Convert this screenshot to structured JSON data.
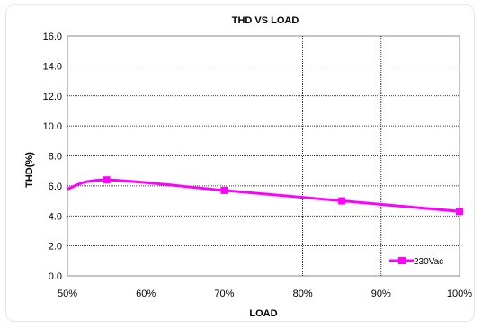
{
  "chart_data": {
    "type": "line",
    "title": "THD  VS  LOAD",
    "xlabel": "LOAD",
    "ylabel": "THD(%)",
    "x_categories": [
      "50%",
      "60%",
      "70%",
      "80%",
      "90%",
      "100%"
    ],
    "x_values": [
      50,
      60,
      70,
      80,
      90,
      100
    ],
    "xlim": [
      50,
      100
    ],
    "y_ticks": [
      "0.0",
      "2.0",
      "4.0",
      "6.0",
      "8.0",
      "10.0",
      "12.0",
      "14.0",
      "16.0"
    ],
    "y_tick_values": [
      0,
      2,
      4,
      6,
      8,
      10,
      12,
      14,
      16
    ],
    "ylim": [
      0,
      16
    ],
    "grid": "horizontal dotted every 2.0; vertical dotted at 80% and 90%",
    "legend_position": "bottom-right",
    "series": [
      {
        "name": "230Vac",
        "color": "#ff00ff",
        "marker": "square",
        "x": [
          50,
          55,
          70,
          85,
          100
        ],
        "y": [
          5.8,
          6.4,
          5.7,
          5.0,
          4.3
        ],
        "marked_points": [
          55,
          70,
          85,
          100
        ]
      }
    ]
  }
}
